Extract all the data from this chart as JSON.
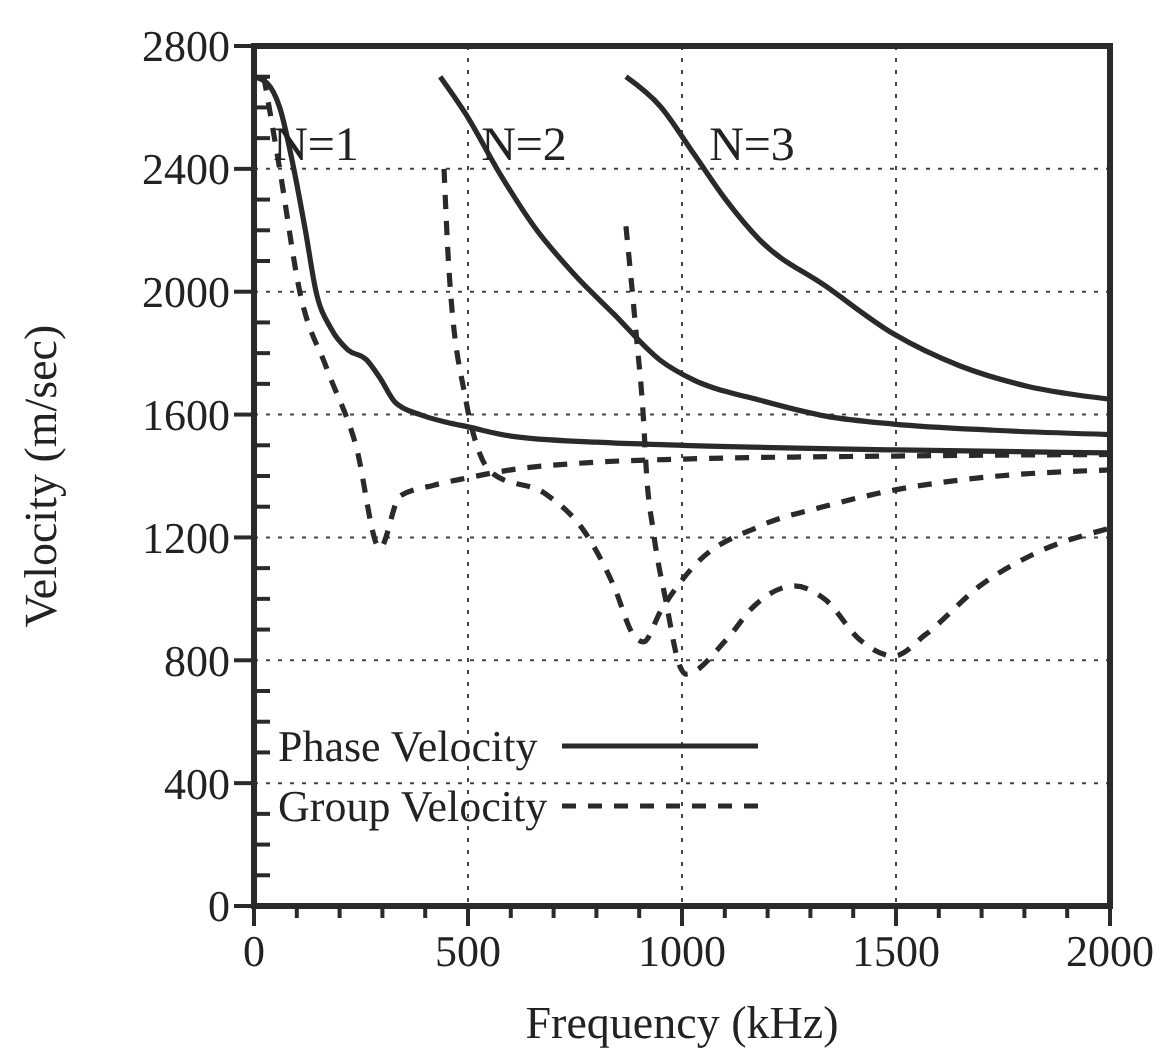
{
  "chart_data": {
    "type": "line",
    "xlabel": "Frequency  (kHz)",
    "ylabel": "Velocity (m/sec)",
    "xlim": [
      0,
      2000
    ],
    "ylim": [
      0,
      2800
    ],
    "xticks": [
      0,
      {
        "value": 100,
        "label": null
      },
      {
        "value": 200,
        "label": null
      },
      {
        "value": 300,
        "label": null
      },
      {
        "value": 400,
        "label": null
      },
      500,
      {
        "value": 600,
        "label": null
      },
      {
        "value": 700,
        "label": null
      },
      {
        "value": 800,
        "label": null
      },
      {
        "value": 900,
        "label": null
      },
      1000,
      {
        "value": 1100,
        "label": null
      },
      {
        "value": 1200,
        "label": null
      },
      {
        "value": 1300,
        "label": null
      },
      {
        "value": 1400,
        "label": null
      },
      1500,
      {
        "value": 1600,
        "label": null
      },
      {
        "value": 1700,
        "label": null
      },
      {
        "value": 1800,
        "label": null
      },
      {
        "value": 1900,
        "label": null
      },
      2000
    ],
    "yticks": [
      0,
      {
        "value": 100,
        "label": null
      },
      {
        "value": 200,
        "label": null
      },
      {
        "value": 300,
        "label": null
      },
      400,
      {
        "value": 500,
        "label": null
      },
      {
        "value": 600,
        "label": null
      },
      {
        "value": 700,
        "label": null
      },
      800,
      {
        "value": 900,
        "label": null
      },
      {
        "value": 1000,
        "label": null
      },
      {
        "value": 1100,
        "label": null
      },
      1200,
      {
        "value": 1300,
        "label": null
      },
      {
        "value": 1400,
        "label": null
      },
      {
        "value": 1500,
        "label": null
      },
      1600,
      {
        "value": 1700,
        "label": null
      },
      {
        "value": 1800,
        "label": null
      },
      {
        "value": 1900,
        "label": null
      },
      2000,
      {
        "value": 2100,
        "label": null
      },
      {
        "value": 2200,
        "label": null
      },
      {
        "value": 2300,
        "label": null
      },
      2400,
      {
        "value": 2500,
        "label": null
      },
      {
        "value": 2600,
        "label": null
      },
      {
        "value": 2700,
        "label": null
      },
      2800
    ],
    "grid": true,
    "legend": "bottom left",
    "annotations": [
      "N=1",
      "N=2",
      "N=3"
    ],
    "series": [
      {
        "name": "Phase Velocity",
        "color": "#2a2a2a",
        "line_style": "solid",
        "x": [
          0,
          30,
          60,
          93,
          120,
          145,
          180,
          220,
          262,
          294,
          330,
          388,
          450,
          500,
          600,
          800,
          1000,
          1500,
          2000
        ],
        "values": [
          2700,
          2680,
          2600,
          2400,
          2200,
          2000,
          1880,
          1810,
          1780,
          1720,
          1640,
          1600,
          1575,
          1560,
          1530,
          1510,
          1500,
          1485,
          1475
        ]
      },
      {
        "name": "Group Velocity",
        "color": "#2a2a2a",
        "line_style": "dashed",
        "x": [
          23,
          60,
          107,
          170,
          238,
          294,
          341,
          420,
          495,
          600,
          800,
          1000,
          1500,
          2000
        ],
        "values": [
          2700,
          2400,
          2000,
          1750,
          1500,
          1165,
          1335,
          1370,
          1393,
          1420,
          1445,
          1455,
          1465,
          1470
        ]
      },
      {
        "color": "#2a2a2a",
        "line_style": "solid",
        "x": [
          435,
          495,
          575,
          654,
          748,
          841,
          949,
          1028,
          1182,
          1336,
          1495,
          1729,
          2000
        ],
        "values": [
          2700,
          2578,
          2383,
          2213,
          2057,
          1927,
          1777,
          1712,
          1647,
          1595,
          1569,
          1549,
          1535
        ]
      },
      {
        "color": "#2a2a2a",
        "line_style": "dashed",
        "x": [
          444,
          455,
          495,
          528,
          560,
          682,
          776,
          841,
          888,
          910,
          950,
          1028,
          1182,
          1336,
          1495,
          1650,
          2000
        ],
        "values": [
          2400,
          2083,
          1647,
          1471,
          1406,
          1341,
          1211,
          1041,
          879,
          860,
          960,
          1107,
          1237,
          1302,
          1354,
          1387,
          1420
        ]
      },
      {
        "color": "#2a2a2a",
        "line_style": "solid",
        "x": [
          869,
          949,
          1028,
          1103,
          1182,
          1336,
          1495,
          1650,
          1804,
          2000
        ],
        "values": [
          2700,
          2604,
          2448,
          2298,
          2168,
          2018,
          1862,
          1758,
          1693,
          1650
        ]
      },
      {
        "color": "#2a2a2a",
        "line_style": "dashed",
        "x": [
          869,
          893,
          911,
          916,
          934,
          962,
          995,
          1009,
          1103,
          1168,
          1262,
          1336,
          1416,
          1495,
          1570,
          1696,
          1822,
          2000
        ],
        "values": [
          2213,
          1862,
          1562,
          1432,
          1211,
          996,
          781,
          755,
          866,
          976,
          1042,
          996,
          866,
          814,
          885,
          1042,
          1146,
          1230
        ]
      }
    ]
  }
}
